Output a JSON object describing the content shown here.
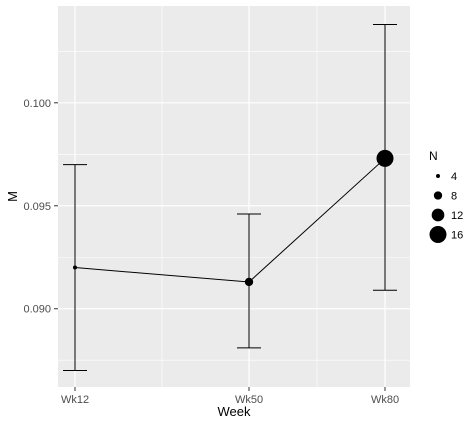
{
  "chart_data": {
    "type": "line",
    "xlabel": "Week",
    "ylabel": "M",
    "categories": [
      "Wk12",
      "Wk50",
      "Wk80"
    ],
    "series": [
      {
        "values": [
          0.092,
          0.0913,
          0.0973
        ],
        "error_low": [
          0.087,
          0.0881,
          0.0909
        ],
        "error_high": [
          0.097,
          0.0946,
          0.1038
        ],
        "n": [
          4,
          8,
          16
        ]
      }
    ],
    "ylim": [
      0.0862,
      0.1047
    ],
    "yticks": [
      "0.090",
      "0.095",
      "0.100"
    ],
    "ytick_values": [
      0.09,
      0.095,
      0.1
    ],
    "grid": true,
    "legend": {
      "title": "N",
      "placement": "right",
      "entries": [
        {
          "label": "4",
          "n": 4
        },
        {
          "label": "8",
          "n": 8
        },
        {
          "label": "12",
          "n": 12
        },
        {
          "label": "16",
          "n": 16
        }
      ]
    },
    "colors": {
      "panel": "#EBEBEB",
      "grid": "#FFFFFF",
      "ink": "#000000",
      "tick_text": "#4D4D4D"
    }
  }
}
